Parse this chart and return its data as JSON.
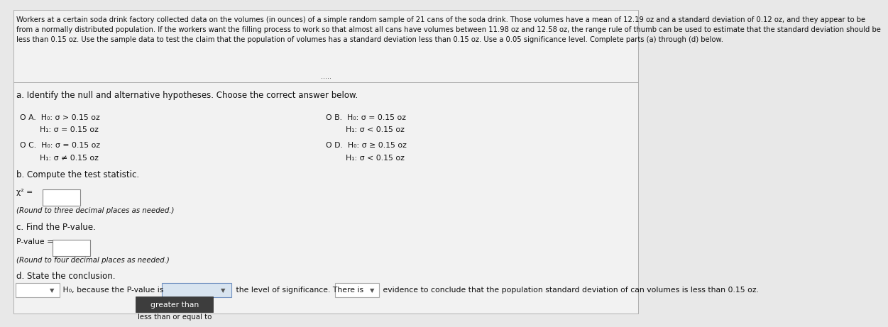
{
  "bg_color": "#e8e8e8",
  "panel_color": "#f2f2f2",
  "title_text": "Workers at a certain soda drink factory collected data on the volumes (in ounces) of a simple random sample of 21 cans of the soda drink. Those volumes have a mean of 12.19 oz and a standard deviation of 0.12 oz, and they appear to be\nfrom a normally distributed population. If the workers want the filling process to work so that almost all cans have volumes between 11.98 oz and 12.58 oz, the range rule of thumb can be used to estimate that the standard deviation should be\nless than 0.15 oz. Use the sample data to test the claim that the population of volumes has a standard deviation less than 0.15 oz. Use a 0.05 significance level. Complete parts (a) through (d) below.",
  "part_a_label": "a. Identify the null and alternative hypotheses. Choose the correct answer below.",
  "opt_A_line1": "O A.  H₀: σ > 0.15 oz",
  "opt_A_line2": "        H₁: σ = 0.15 oz",
  "opt_B_line1": "O B.  H₀: σ = 0.15 oz",
  "opt_B_line2": "        H₁: σ < 0.15 oz",
  "opt_C_line1": "O C.  H₀: σ = 0.15 oz",
  "opt_C_line2": "        H₁: σ ≠ 0.15 oz",
  "opt_D_line1": "O D.  H₀: σ ≥ 0.15 oz",
  "opt_D_line2": "        H₁: σ < 0.15 oz",
  "part_b_label": "b. Compute the test statistic.",
  "chi_sq_line": "χ² =",
  "round3_note": "(Round to three decimal places as needed.)",
  "part_c_label": "c. Find the P-value.",
  "pvalue_line": "P-value =",
  "round4_note": "(Round to four decimal places as needed.)",
  "part_d_label": "d. State the conclusion.",
  "conclusion_prefix": " H₀, because the P-value is",
  "conclusion_middle": " the level of significance. There is",
  "conclusion_suffix": " evidence to conclude that the population standard deviation of can volumes is less than 0.15 oz.",
  "dropdown_button_text": "greater than",
  "dropdown_alt_text": "less than or equal to",
  "input_box_color": "#ffffff",
  "dropdown_bg": "#3d3d3d",
  "dropdown_text_color": "#ffffff",
  "font_size_title": 7.2,
  "font_size_body": 8.5,
  "font_size_small": 7.8
}
